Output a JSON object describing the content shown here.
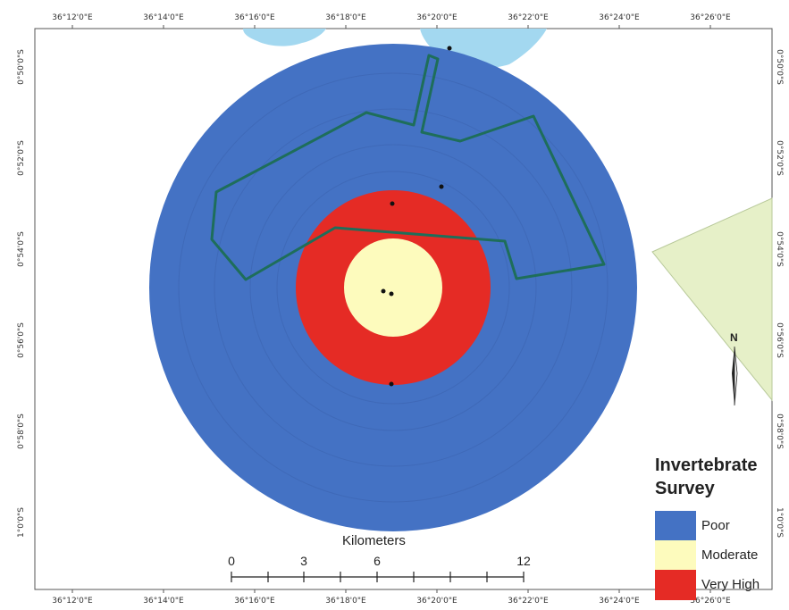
{
  "graticule": {
    "top": [
      "36°12'0\"E",
      "36°14'0\"E",
      "36°16'0\"E",
      "36°18'0\"E",
      "36°20'0\"E",
      "36°22'0\"E",
      "36°24'0\"E",
      "36°26'0\"E"
    ],
    "bottom": [
      "36°12'0\"E",
      "36°14'0\"E",
      "36°16'0\"E",
      "36°18'0\"E",
      "36°20'0\"E",
      "36°22'0\"E",
      "36°24'0\"E",
      "36°26'0\"E"
    ],
    "left": [
      "0°50'0\"S",
      "0°52'0\"S",
      "0°54'0\"S",
      "0°56'0\"S",
      "0°58'0\"S",
      "1°0'0\"S"
    ],
    "right": [
      "0°50'0\"S",
      "0°52'0\"S",
      "0°54'0\"S",
      "0°56'0\"S",
      "0°58'0\"S",
      "1°0'0\"S"
    ]
  },
  "legend": {
    "title_line1": "Invertebrate",
    "title_line2": "Survey",
    "items": [
      {
        "label": "Poor",
        "color": "#4472c4"
      },
      {
        "label": "Moderate",
        "color": "#fdfbbd"
      },
      {
        "label": "Very High",
        "color": "#e52b25"
      }
    ]
  },
  "scalebar": {
    "title": "Kilometers",
    "labels": [
      "0",
      "3",
      "6",
      "12"
    ]
  },
  "north_arrow": {
    "label": "N"
  },
  "colors": {
    "water": "#a3d8f0",
    "land_polygon": "#e6f0c8",
    "boundary": "#1e6e5a",
    "poor": "#4472c4",
    "moderate": "#fdfbbd",
    "very_high": "#e52b25"
  }
}
